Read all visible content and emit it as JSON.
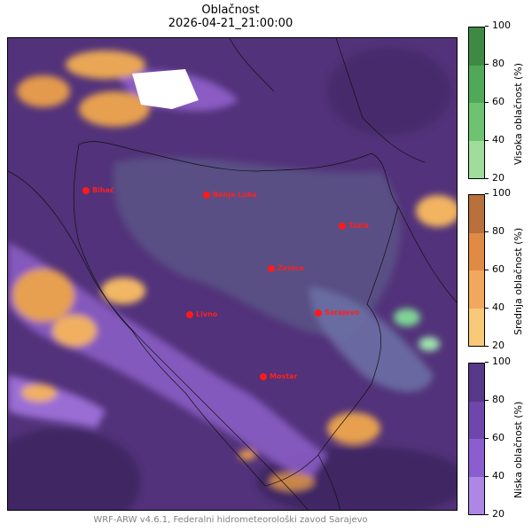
{
  "title": "Oblačnost",
  "subtitle": "2026-04-21_21:00:00",
  "footer": "WRF-ARW v4.6.1, Federalni hidrometeorološki zavod Sarajevo",
  "cities": [
    {
      "name": "Bihać"
    },
    {
      "name": "Banja Luka"
    },
    {
      "name": "Tuzla"
    },
    {
      "name": "Zenica"
    },
    {
      "name": "Sarajevo"
    },
    {
      "name": "Livno"
    },
    {
      "name": "Mostar"
    }
  ],
  "colorbars": [
    {
      "label": "Visoka oblačnost (%)",
      "ticks": [
        "100",
        "80",
        "60",
        "40",
        "20"
      ],
      "colors": [
        "#3e8a45",
        "#4fa958",
        "#6dc36f",
        "#a0dc9c",
        "#c9eec5"
      ]
    },
    {
      "label": "Srednja oblačnost (%)",
      "ticks": [
        "100",
        "80",
        "60",
        "40",
        "20"
      ],
      "colors": [
        "#b8703c",
        "#e08a45",
        "#f2a85c",
        "#f8c978",
        "#fde6a6"
      ]
    },
    {
      "label": "Niska oblačnost (%)",
      "ticks": [
        "100",
        "80",
        "60",
        "40",
        "20"
      ],
      "colors": [
        "#573889",
        "#6f46ab",
        "#8b5dcf",
        "#ac87e6",
        "#d3c0f7"
      ]
    }
  ]
}
